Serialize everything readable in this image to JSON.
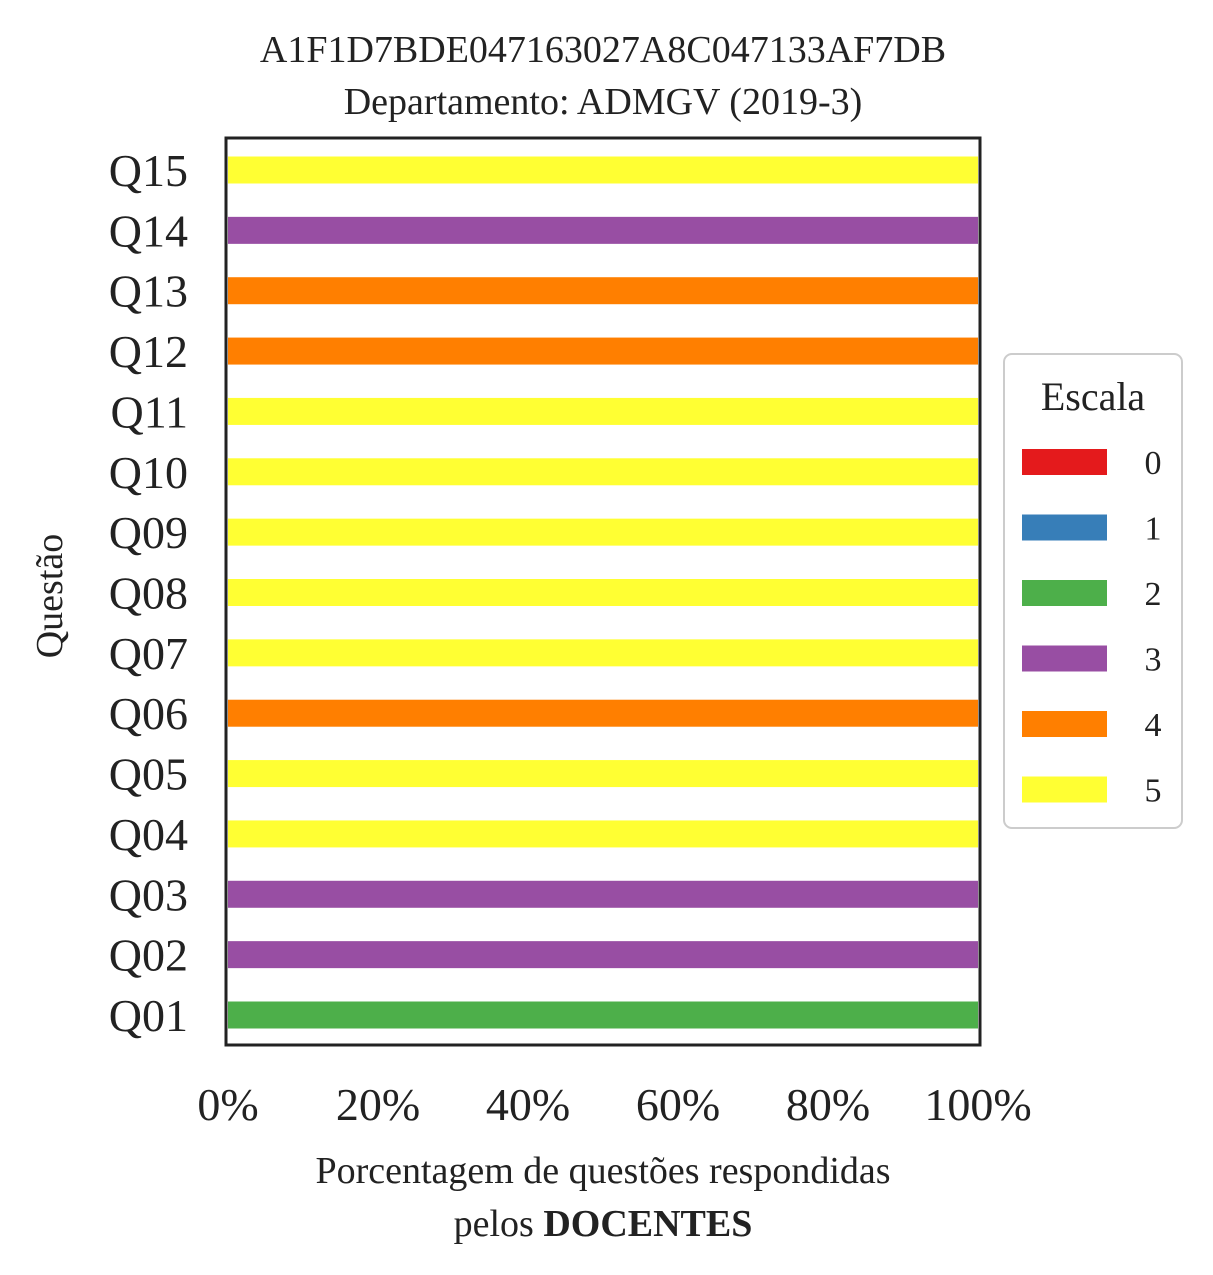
{
  "chart_data": {
    "type": "bar",
    "orientation": "horizontal",
    "stacked": true,
    "title_lines": [
      "A1F1D7BDE047163027A8C047133AF7DB",
      "Departamento: ADMGV (2019-3)"
    ],
    "ylabel": "Questão",
    "xlabel_line1": "Porcentagem de questões respondidas",
    "xlabel_line2_prefix": "pelos ",
    "xlabel_line2_bold": "DOCENTES",
    "categories": [
      "Q01",
      "Q02",
      "Q03",
      "Q04",
      "Q05",
      "Q06",
      "Q07",
      "Q08",
      "Q09",
      "Q10",
      "Q11",
      "Q12",
      "Q13",
      "Q14",
      "Q15"
    ],
    "xlim": [
      0,
      100
    ],
    "xticks": [
      0,
      20,
      40,
      60,
      80,
      100
    ],
    "xtick_labels": [
      "0%",
      "20%",
      "40%",
      "60%",
      "80%",
      "100%"
    ],
    "grid": false,
    "legend": {
      "title": "Escala",
      "placement": "right",
      "entries": [
        {
          "label": "0",
          "color": "#e41a1c"
        },
        {
          "label": "1",
          "color": "#377eb8"
        },
        {
          "label": "2",
          "color": "#4daf4a"
        },
        {
          "label": "3",
          "color": "#984ea3"
        },
        {
          "label": "4",
          "color": "#ff7f00"
        },
        {
          "label": "5",
          "color": "#ffff33"
        }
      ]
    },
    "series": [
      {
        "name": "0",
        "color": "#e41a1c",
        "values": [
          0,
          0,
          0,
          0,
          0,
          0,
          0,
          0,
          0,
          0,
          0,
          0,
          0,
          0,
          0
        ]
      },
      {
        "name": "1",
        "color": "#377eb8",
        "values": [
          0,
          0,
          0,
          0,
          0,
          0,
          0,
          0,
          0,
          0,
          0,
          0,
          0,
          0,
          0
        ]
      },
      {
        "name": "2",
        "color": "#4daf4a",
        "values": [
          100,
          0,
          0,
          0,
          0,
          0,
          0,
          0,
          0,
          0,
          0,
          0,
          0,
          0,
          0
        ]
      },
      {
        "name": "3",
        "color": "#984ea3",
        "values": [
          0,
          100,
          100,
          0,
          0,
          0,
          0,
          0,
          0,
          0,
          0,
          0,
          0,
          100,
          0
        ]
      },
      {
        "name": "4",
        "color": "#ff7f00",
        "values": [
          0,
          0,
          0,
          0,
          0,
          100,
          0,
          0,
          0,
          0,
          0,
          100,
          100,
          0,
          0
        ]
      },
      {
        "name": "5",
        "color": "#ffff33",
        "values": [
          0,
          0,
          0,
          100,
          100,
          0,
          100,
          100,
          100,
          100,
          100,
          0,
          0,
          0,
          100
        ]
      }
    ]
  }
}
